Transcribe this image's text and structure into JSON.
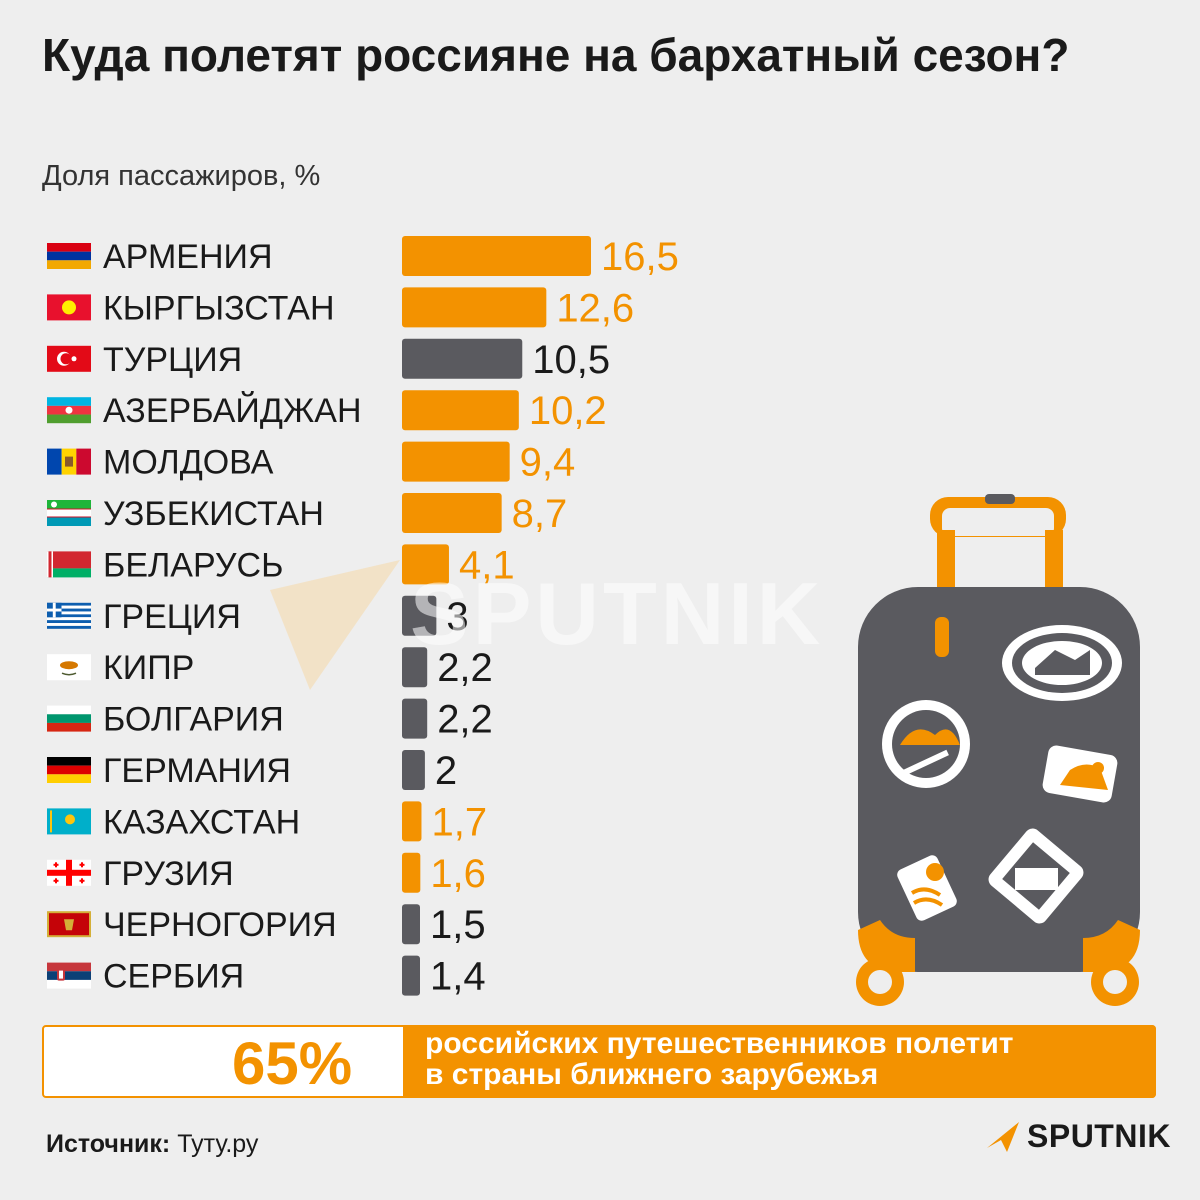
{
  "title": "Куда полетят россияне на бархатный сезон?",
  "subtitle": "Доля пассажиров, %",
  "colors": {
    "orange": "#f39200",
    "gray": "#5a5a5f",
    "background": "#eeeeee"
  },
  "chart_data": {
    "type": "bar",
    "orientation": "horizontal",
    "title": "Куда полетят россияне на бархатный сезон?",
    "subtitle": "Доля пассажиров, %",
    "xlim": [
      0,
      16.5
    ],
    "grid": false,
    "categories": [
      "АРМЕНИЯ",
      "КЫРГЫЗСТАН",
      "ТУРЦИЯ",
      "АЗЕРБАЙДЖАН",
      "МОЛДОВА",
      "УЗБЕКИСТАН",
      "БЕЛАРУСЬ",
      "ГРЕЦИЯ",
      "КИПР",
      "БОЛГАРИЯ",
      "ГЕРМАНИЯ",
      "КАЗАХСТАН",
      "ГРУЗИЯ",
      "ЧЕРНОГОРИЯ",
      "СЕРБИЯ"
    ],
    "values": [
      16.5,
      12.6,
      10.5,
      10.2,
      9.4,
      8.7,
      4.1,
      3,
      2.2,
      2.2,
      2,
      1.7,
      1.6,
      1.5,
      1.4
    ],
    "value_labels": [
      "16,5",
      "12,6",
      "10,5",
      "10,2",
      "9,4",
      "8,7",
      "4,1",
      "3",
      "2,2",
      "2,2",
      "2",
      "1,7",
      "1,6",
      "1,5",
      "1,4"
    ],
    "bar_colors": [
      "orange",
      "orange",
      "gray",
      "orange",
      "orange",
      "orange",
      "orange",
      "gray",
      "gray",
      "gray",
      "gray",
      "orange",
      "orange",
      "gray",
      "gray"
    ],
    "flags": [
      "armenia-flag",
      "kyrgyzstan-flag",
      "turkey-flag",
      "azerbaijan-flag",
      "moldova-flag",
      "uzbekistan-flag",
      "belarus-flag",
      "greece-flag",
      "cyprus-flag",
      "bulgaria-flag",
      "germany-flag",
      "kazakhstan-flag",
      "georgia-flag",
      "montenegro-flag",
      "serbia-flag"
    ]
  },
  "summary": {
    "percent": "65%",
    "text_line1": "российских путешественников полетит",
    "text_line2": "в страны ближнего зарубежья"
  },
  "source": {
    "label": "Источник:",
    "value": "Туту.ру"
  },
  "brand": {
    "name": "SPUTNIK",
    "watermark": "SPUTNIK"
  },
  "illustration": "suitcase-icon"
}
